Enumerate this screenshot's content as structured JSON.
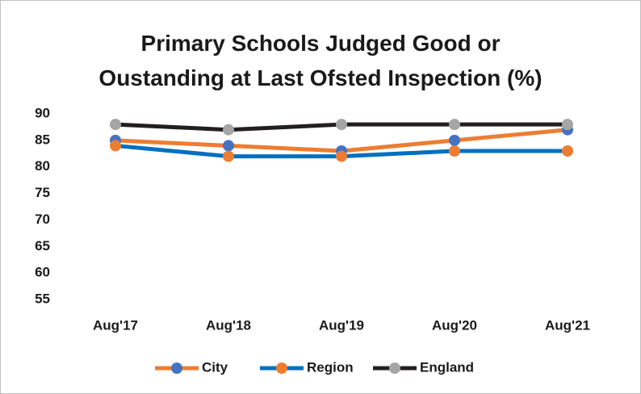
{
  "chart_data": {
    "type": "line",
    "title": "Primary Schools Judged Good or Oustanding at Last Ofsted Inspection (%)",
    "categories": [
      "Aug'17",
      "Aug'18",
      "Aug'19",
      "Aug'20",
      "Aug'21"
    ],
    "series": [
      {
        "name": "City",
        "color": "#ed7d31",
        "marker_color": "#4472c4",
        "values": [
          85,
          84,
          83,
          85,
          87
        ]
      },
      {
        "name": "Region",
        "color": "#0070c0",
        "marker_color": "#ed7d31",
        "values": [
          84,
          82,
          82,
          83,
          83
        ]
      },
      {
        "name": "England",
        "color": "#231f20",
        "marker_color": "#a5a5a5",
        "values": [
          88,
          87,
          88,
          88,
          88
        ]
      }
    ],
    "ylim": [
      55,
      90
    ],
    "yticks": [
      55,
      60,
      65,
      70,
      75,
      80,
      85,
      90
    ],
    "grid": false,
    "legend": "bottom"
  }
}
